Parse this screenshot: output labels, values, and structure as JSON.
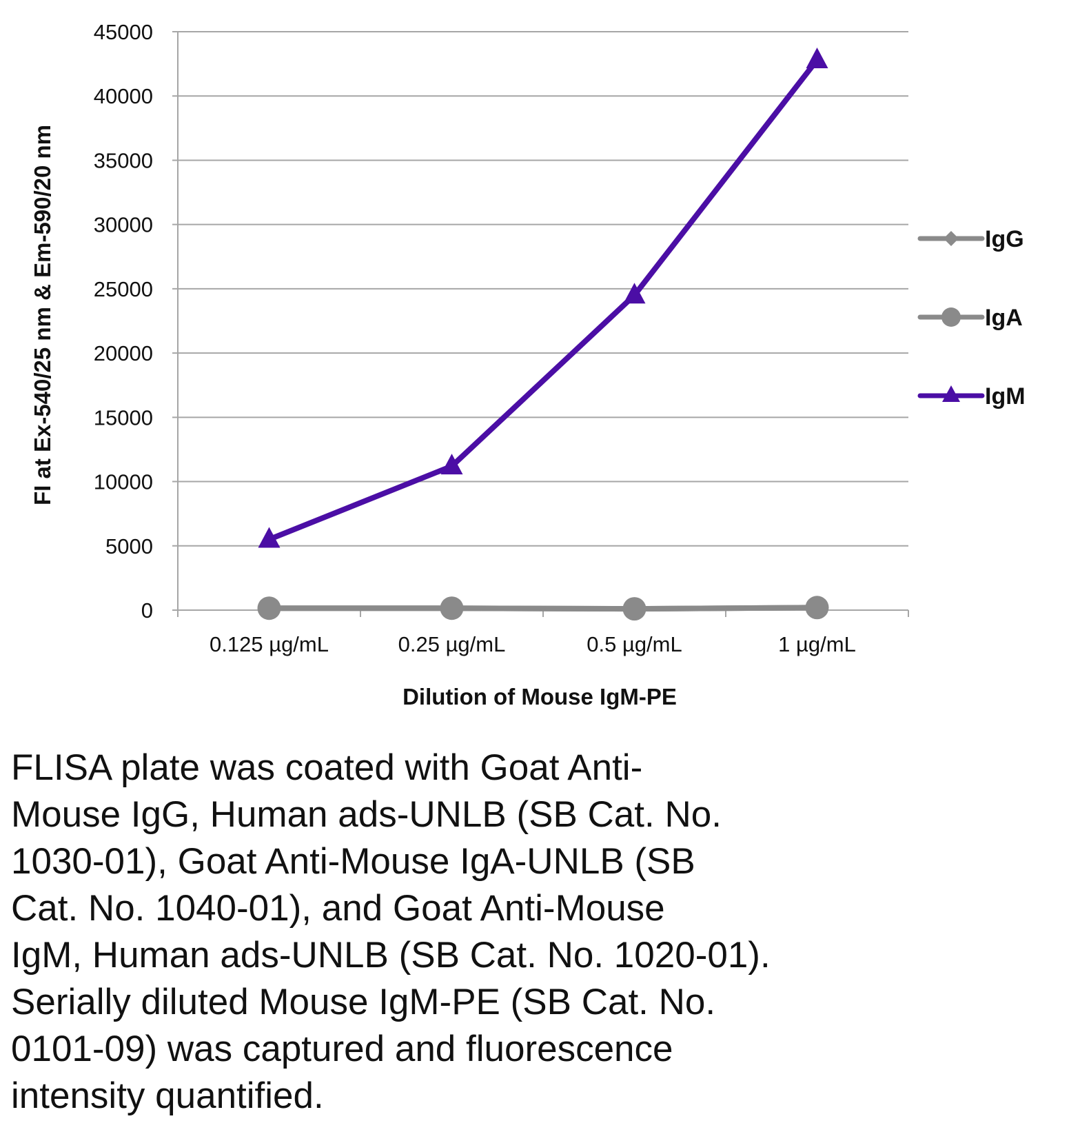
{
  "colors": {
    "IgG": "#8a8a8a",
    "IgA": "#8a8a8a",
    "IgM": "#4b0ea5",
    "grid": "#a6a6a6",
    "axis": "#a6a6a6"
  },
  "chart_data": {
    "type": "line",
    "title": "",
    "xlabel": "Dilution of Mouse IgM-PE",
    "ylabel": "FI at Ex-540/25 nm & Em-590/20 nm",
    "categories": [
      "0.125 µg/mL",
      "0.25 µg/mL",
      "0.5 µg/mL",
      "1 µg/mL"
    ],
    "ylim": [
      0,
      45000
    ],
    "yticks": [
      "0",
      "5000",
      "10000",
      "15000",
      "20000",
      "25000",
      "30000",
      "35000",
      "40000",
      "45000"
    ],
    "grid": true,
    "legend_position": "right",
    "series": [
      {
        "name": "IgG",
        "marker": "diamond",
        "values": [
          150,
          150,
          100,
          200
        ]
      },
      {
        "name": "IgA",
        "marker": "circle",
        "values": [
          150,
          150,
          100,
          200
        ]
      },
      {
        "name": "IgM",
        "marker": "triangle",
        "values": [
          5500,
          11200,
          24500,
          42800
        ]
      }
    ]
  },
  "caption": "FLISA plate was coated with Goat Anti-\nMouse IgG, Human ads-UNLB (SB Cat. No.\n1030-01), Goat Anti-Mouse IgA-UNLB (SB\nCat. No. 1040-01), and Goat Anti-Mouse\nIgM, Human ads-UNLB (SB Cat. No. 1020-01).\nSerially diluted Mouse IgM-PE (SB Cat. No.\n0101-09) was captured and fluorescence\nintensity quantified."
}
